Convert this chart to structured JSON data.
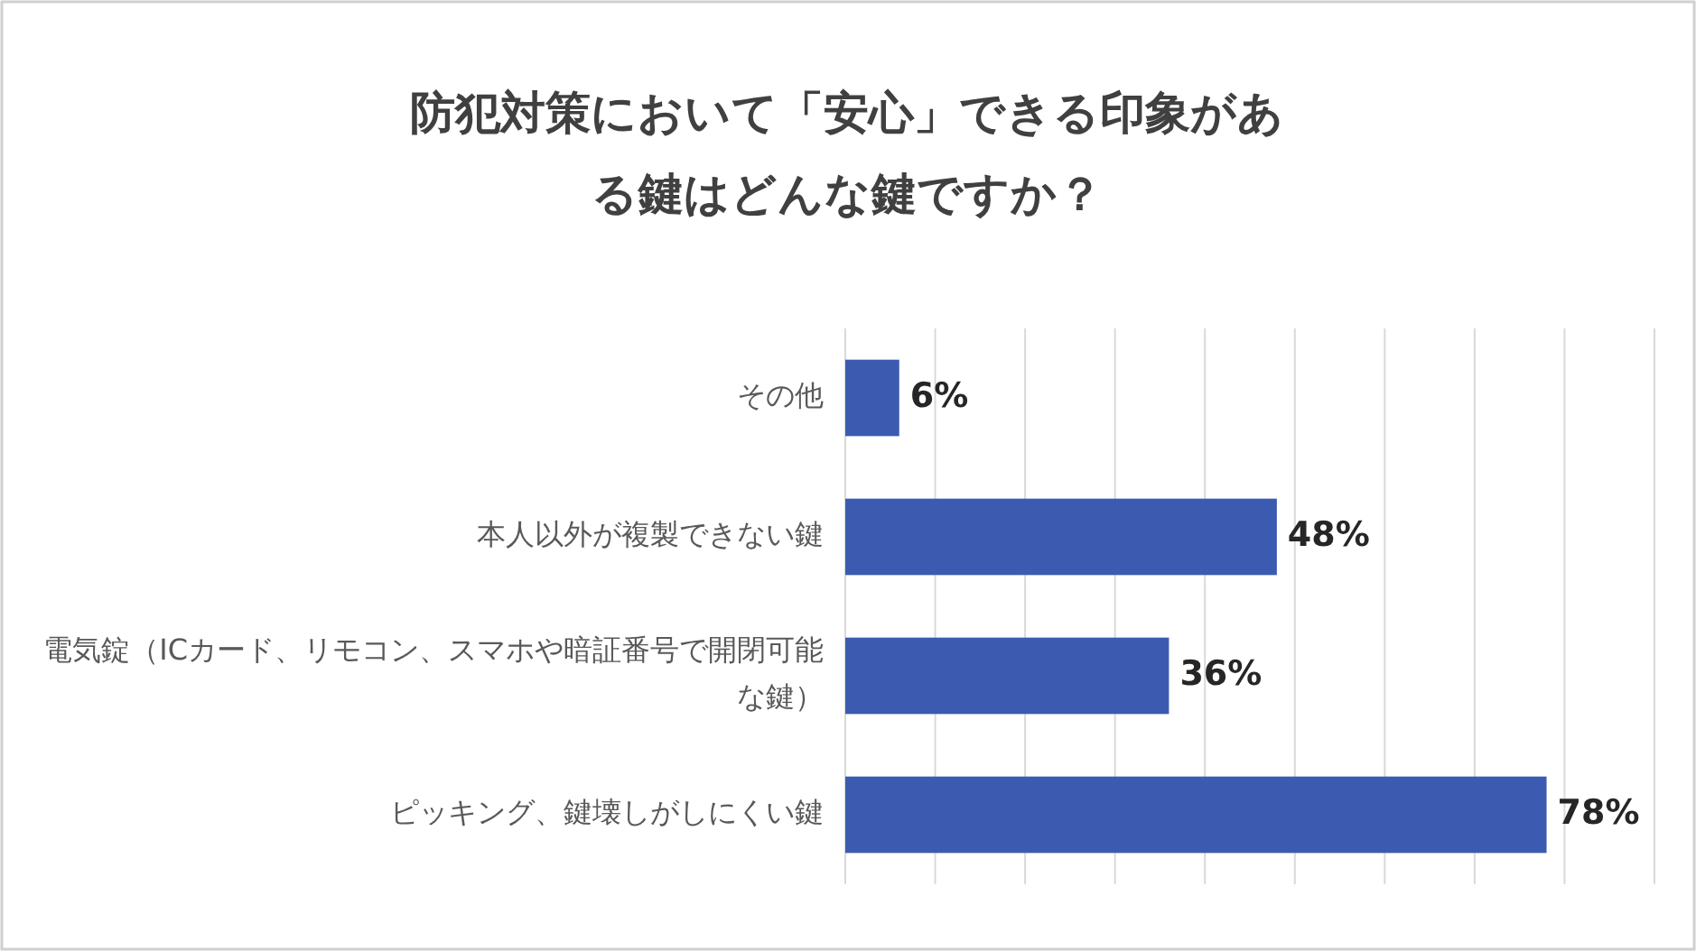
{
  "chart_data": {
    "type": "bar",
    "orientation": "horizontal",
    "title": "防犯対策において「安心」できる印象がある鍵はどんな鍵ですか？",
    "categories": [
      "その他",
      "本人以外が複製できない鍵",
      "電気錠（ICカード、リモコン、スマホや暗証番号で開閉可能な鍵）",
      "ピッキング、鍵壊しがしにくい鍵"
    ],
    "values": [
      6,
      48,
      36,
      78
    ],
    "value_labels": [
      "6%",
      "48%",
      "36%",
      "78%"
    ],
    "color": "#3a5bb0",
    "xlim": [
      0,
      90
    ],
    "xticks": [
      {
        "value": 0,
        "label": null
      },
      {
        "value": 10,
        "label": null
      },
      {
        "value": 20,
        "label": null
      },
      {
        "value": 30,
        "label": null
      },
      {
        "value": 40,
        "label": null
      },
      {
        "value": 50,
        "label": null
      },
      {
        "value": 60,
        "label": null
      },
      {
        "value": 70,
        "label": null
      },
      {
        "value": 80,
        "label": null
      },
      {
        "value": 90,
        "label": null
      }
    ],
    "grid": "x",
    "tick_labels": "y"
  }
}
